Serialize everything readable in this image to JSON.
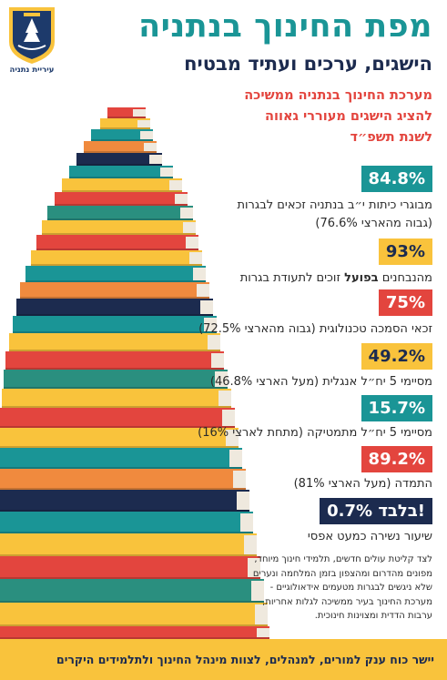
{
  "colors": {
    "teal": "#1a9596",
    "navy": "#1c2b4f",
    "red": "#e3453e",
    "yellow": "#f9c33c",
    "orange": "#f08a3e",
    "green_teal": "#2a8f7f"
  },
  "logo": {
    "caption": "עיריית נתניה",
    "icon": "city-crest-icon"
  },
  "header": {
    "title": "מפת החינוך בנתניה",
    "subtitle": "הישגים, ערכים ועתיד מבטיח",
    "intro_lines": [
      "מערכת החינוך בנתניה ממשיכה",
      "להציג הישגים מעוררי גאווה",
      "לשנת תשפ״ד"
    ]
  },
  "stats": [
    {
      "value": "84.8%",
      "lines": [
        "מבוגרי כיתות י״ב בנתניה זכאים לבגרות",
        "(גבוה מהארצי 76.6%)"
      ]
    },
    {
      "value": "93%",
      "lines_rich": [
        [
          "מהנבחנים ",
          ""
        ],
        [
          "בפועל",
          "b"
        ],
        [
          " זוכים לתעודת בגרות",
          ""
        ]
      ]
    },
    {
      "value": "75%",
      "lines": [
        "זכאי הסמכה טכנולוגית (גבוה מהארצי 72.5%)"
      ]
    },
    {
      "value": "49.2%",
      "lines": [
        "מסיימי 5 יח״ל אנגלית (מעל הארצי 46.8%)"
      ]
    },
    {
      "value": "15.7%",
      "lines": [
        "מסיימי 5 יח״ל מתמטיקה (מתחת לארצי 16%)"
      ]
    },
    {
      "value": "89.2%",
      "lines": [
        "התמדה (מעל הארצי 81%)"
      ]
    },
    {
      "value": "0.7% בלבד!",
      "lines": [
        "שיעור נשירה כמעט אפסי"
      ]
    }
  ],
  "closing_lines": [
    "לצד קליטת עולים חדשים, תלמידי חינוך מיוחד,",
    "מפונים מהדרום ומהצפון בזמן המלחמה ונערים",
    "שלא ניגשים לבגרות מטעמים אידאולוגיים -",
    "מערכת החינוך בעיר ממשיכה לגלות אחריות,",
    "ערבות הדדית ומצוינות חינוכית."
  ],
  "footer": {
    "text": "יישר כוח ענק למורים, למנהלים, לצוות מינהל החינוך ולתלמידים היקרים"
  }
}
